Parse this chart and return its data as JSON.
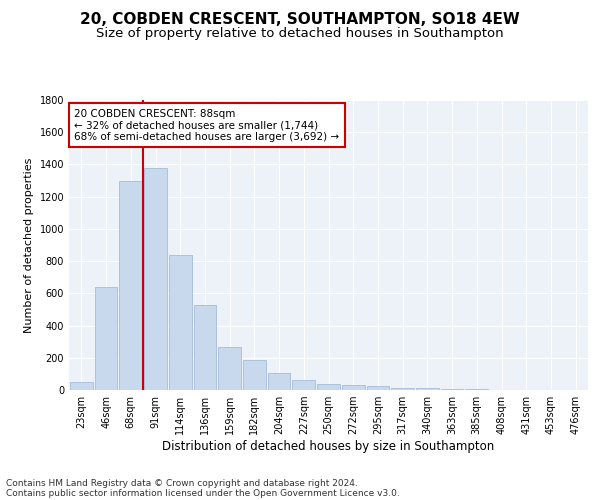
{
  "title": "20, COBDEN CRESCENT, SOUTHAMPTON, SO18 4EW",
  "subtitle": "Size of property relative to detached houses in Southampton",
  "xlabel": "Distribution of detached houses by size in Southampton",
  "ylabel": "Number of detached properties",
  "bar_color": "#c9d9ed",
  "bar_edge_color": "#9ab5d5",
  "background_color": "#edf2f9",
  "grid_color": "#ffffff",
  "vline_color": "#cc0000",
  "annotation_text": "20 COBDEN CRESCENT: 88sqm\n← 32% of detached houses are smaller (1,744)\n68% of semi-detached houses are larger (3,692) →",
  "annotation_box_facecolor": "#ffffff",
  "annotation_box_edgecolor": "#cc0000",
  "categories": [
    "23sqm",
    "46sqm",
    "68sqm",
    "91sqm",
    "114sqm",
    "136sqm",
    "159sqm",
    "182sqm",
    "204sqm",
    "227sqm",
    "250sqm",
    "272sqm",
    "295sqm",
    "317sqm",
    "340sqm",
    "363sqm",
    "385sqm",
    "408sqm",
    "431sqm",
    "453sqm",
    "476sqm"
  ],
  "values": [
    50,
    640,
    1300,
    1380,
    840,
    530,
    270,
    185,
    105,
    65,
    35,
    30,
    25,
    15,
    10,
    5,
    5,
    3,
    2,
    1,
    1
  ],
  "ylim": [
    0,
    1800
  ],
  "yticks": [
    0,
    200,
    400,
    600,
    800,
    1000,
    1200,
    1400,
    1600,
    1800
  ],
  "vline_x_index": 2.5,
  "footer_line1": "Contains HM Land Registry data © Crown copyright and database right 2024.",
  "footer_line2": "Contains public sector information licensed under the Open Government Licence v3.0.",
  "title_fontsize": 11,
  "subtitle_fontsize": 9.5,
  "xlabel_fontsize": 8.5,
  "ylabel_fontsize": 8,
  "tick_fontsize": 7,
  "annotation_fontsize": 7.5,
  "footer_fontsize": 6.5
}
